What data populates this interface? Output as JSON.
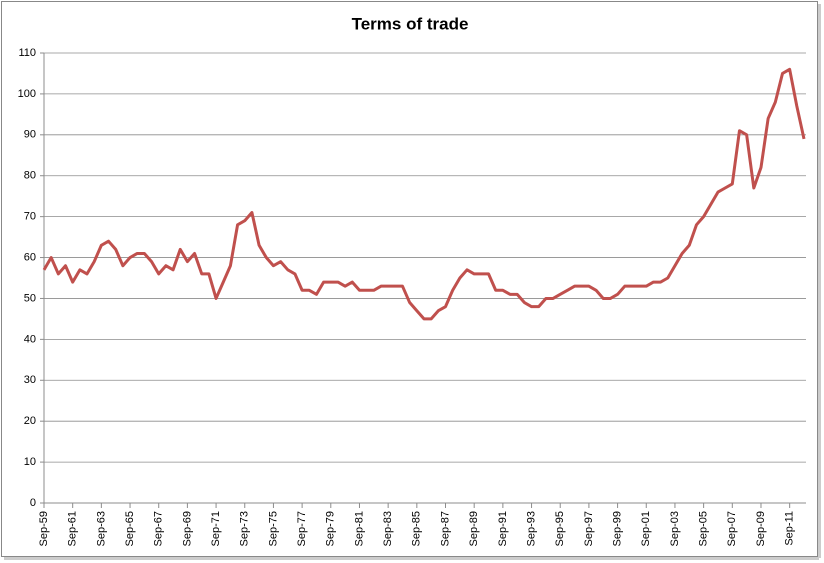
{
  "chart_data": {
    "type": "line",
    "title": "Terms of trade",
    "categories": [
      "Sep-59",
      null,
      null,
      null,
      "Sep-61",
      null,
      null,
      null,
      "Sep-63",
      null,
      null,
      null,
      "Sep-65",
      null,
      null,
      null,
      "Sep-67",
      null,
      null,
      null,
      "Sep-69",
      null,
      null,
      null,
      "Sep-71",
      null,
      null,
      null,
      "Sep-73",
      null,
      null,
      null,
      "Sep-75",
      null,
      null,
      null,
      "Sep-77",
      null,
      null,
      null,
      "Sep-79",
      null,
      null,
      null,
      "Sep-81",
      null,
      null,
      null,
      "Sep-83",
      null,
      null,
      null,
      "Sep-85",
      null,
      null,
      null,
      "Sep-87",
      null,
      null,
      null,
      "Sep-89",
      null,
      null,
      null,
      "Sep-91",
      null,
      null,
      null,
      "Sep-93",
      null,
      null,
      null,
      "Sep-95",
      null,
      null,
      null,
      "Sep-97",
      null,
      null,
      null,
      "Sep-99",
      null,
      null,
      null,
      "Sep-01",
      null,
      null,
      null,
      "Sep-03",
      null,
      null,
      null,
      "Sep-05",
      null,
      null,
      null,
      "Sep-07",
      null,
      null,
      null,
      "Sep-09",
      null,
      null,
      null,
      "Sep-11",
      null,
      null
    ],
    "series": [
      {
        "name": "Terms of trade",
        "color": "#c0504d",
        "values": [
          57,
          60,
          56,
          58,
          54,
          57,
          56,
          59,
          63,
          64,
          62,
          58,
          60,
          61,
          61,
          59,
          56,
          58,
          57,
          62,
          59,
          61,
          56,
          56,
          50,
          54,
          58,
          68,
          69,
          71,
          63,
          60,
          58,
          59,
          57,
          56,
          52,
          52,
          51,
          54,
          54,
          54,
          53,
          54,
          52,
          52,
          52,
          53,
          53,
          53,
          53,
          49,
          47,
          45,
          45,
          47,
          48,
          52,
          55,
          57,
          56,
          56,
          56,
          52,
          52,
          51,
          51,
          49,
          48,
          48,
          50,
          50,
          51,
          52,
          53,
          53,
          53,
          52,
          50,
          50,
          51,
          53,
          53,
          53,
          53,
          54,
          54,
          55,
          58,
          61,
          63,
          68,
          70,
          73,
          76,
          77,
          78,
          91,
          90,
          77,
          82,
          94,
          98,
          105,
          106,
          97,
          89
        ]
      }
    ],
    "ylim": [
      0,
      110
    ],
    "yticks": [
      0,
      10,
      20,
      30,
      40,
      50,
      60,
      70,
      80,
      90,
      100,
      110
    ],
    "grid": true
  }
}
